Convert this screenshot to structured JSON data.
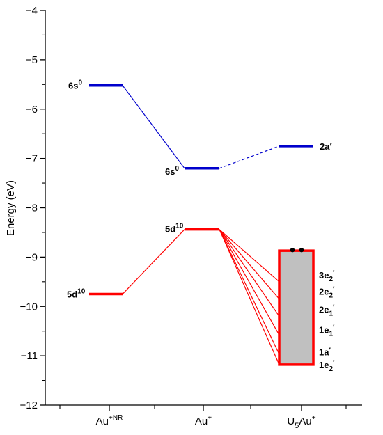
{
  "chart_data": {
    "type": "energy-level-diagram",
    "ylabel": "Energy (eV)",
    "ylim": [
      -12,
      -4
    ],
    "y_ticks": [
      -12,
      -11,
      -10,
      -9,
      -8,
      -7,
      -6,
      -5,
      -4
    ],
    "categories": [
      {
        "base": "Au",
        "sup": "+NR",
        "sub": ""
      },
      {
        "base": "Au",
        "sup": "+",
        "sub": ""
      },
      {
        "base": "U",
        "sub": "5",
        "mid": "Au",
        "sup": "+"
      }
    ],
    "colors": {
      "s_levels": "#0000cc",
      "d_levels": "#ff0000",
      "band_fill": "#c0c0c0",
      "axis": "#000000"
    },
    "levels": [
      {
        "id": "aunr-6s",
        "column": 0,
        "energy": -5.52,
        "color": "#0000cc",
        "label": "6s",
        "sup": "0"
      },
      {
        "id": "aunr-5d",
        "column": 0,
        "energy": -9.75,
        "color": "#ff0000",
        "label": "5d",
        "sup": "10"
      },
      {
        "id": "au-6s",
        "column": 1,
        "energy": -7.2,
        "color": "#0000cc",
        "label": "6s",
        "sup": "0"
      },
      {
        "id": "au-5d",
        "column": 1,
        "energy": -8.44,
        "color": "#ff0000",
        "label": "5d",
        "sup": "10"
      },
      {
        "id": "u5au-2a",
        "column": 2,
        "energy": -6.75,
        "color": "#0000cc",
        "label": "2a′",
        "sup": ""
      }
    ],
    "connectors": [
      {
        "from": "aunr-6s",
        "to": "au-6s",
        "color": "#0000cc",
        "style": "solid"
      },
      {
        "from": "au-6s",
        "to": "u5au-2a",
        "color": "#0000cc",
        "style": "dashed"
      },
      {
        "from": "aunr-5d",
        "to": "au-5d",
        "color": "#ff0000",
        "style": "solid"
      }
    ],
    "band": {
      "column": 2,
      "top": -8.87,
      "bottom": -11.18,
      "electrons": 2,
      "fan_from": "au-5d",
      "fan_targets": [
        -9.5,
        -9.85,
        -10.2,
        -10.58,
        -10.97,
        -11.18
      ],
      "labels": [
        {
          "base": "3e",
          "sub": "2",
          "prime": "′",
          "energy": -9.36
        },
        {
          "base": "2e",
          "sub": "2",
          "prime": "′",
          "energy": -9.69
        },
        {
          "base": "2e",
          "sub": "1",
          "prime": "′",
          "energy": -10.06
        },
        {
          "base": "1e",
          "sub": "1",
          "prime": "′",
          "energy": -10.47
        },
        {
          "base": "1a",
          "sub": "",
          "prime": "′",
          "energy": -10.92
        },
        {
          "base": "1e",
          "sub": "2",
          "prime": "′",
          "energy": -11.18
        }
      ]
    }
  }
}
